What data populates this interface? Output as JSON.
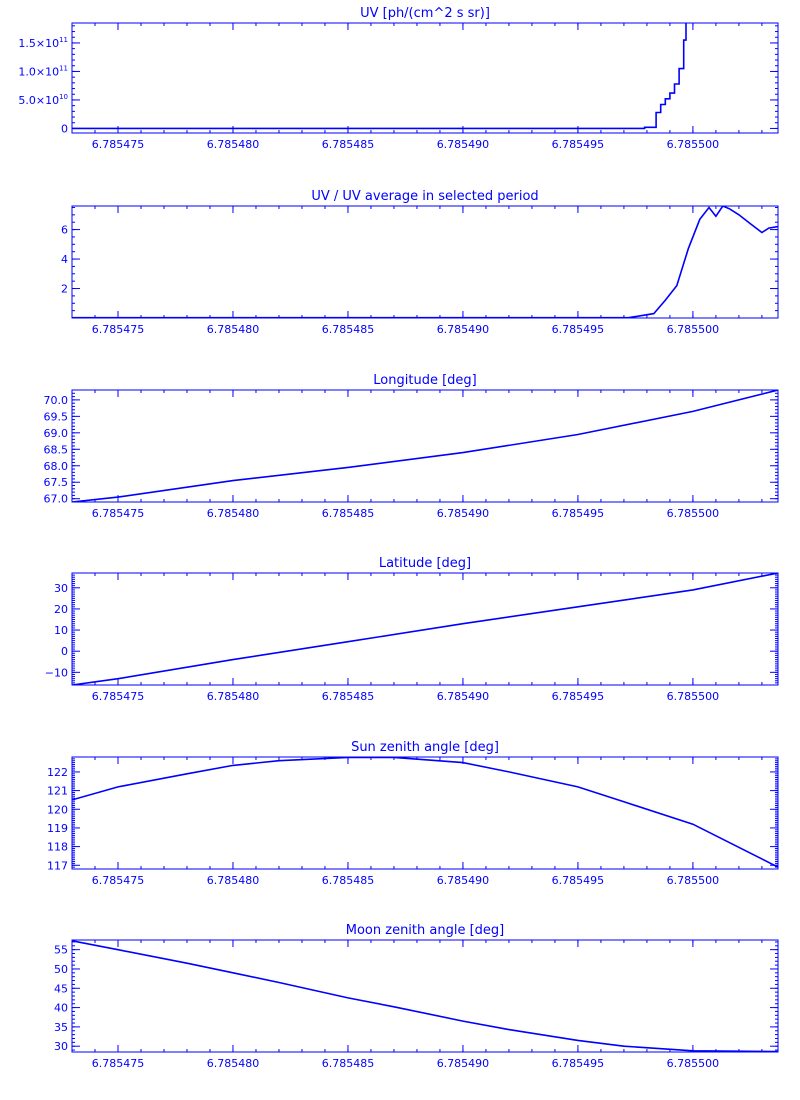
{
  "color": "#0000ff",
  "chart_data": [
    {
      "type": "line",
      "title": "UV [ph/(cm^2 s sr)]",
      "xlim": [
        6.785473,
        6.7855037
      ],
      "ylim": [
        -8000000000,
        185000000000
      ],
      "xticks": [
        "6.785475",
        "6.785480",
        "6.785485",
        "6.785490",
        "6.785495",
        "6.785500"
      ],
      "xtick_values": [
        6.785475,
        6.78548,
        6.785485,
        6.78549,
        6.785495,
        6.7855
      ],
      "yticks": [
        {
          "value": 150000000000,
          "base": "1.5×10",
          "exp": "11"
        },
        {
          "value": 100000000000,
          "base": "1.0×10",
          "exp": "11"
        },
        {
          "value": 50000000000,
          "base": "5.0×10",
          "exp": "10"
        },
        {
          "value": 0,
          "base": "0",
          "exp": ""
        }
      ],
      "ministep": 10000000000,
      "x": [
        6.785473,
        6.785497,
        6.7854979,
        6.7854982,
        6.7854984,
        6.7854986,
        6.7854988,
        6.785499,
        6.7854992,
        6.7854994,
        6.7854996,
        6.7854997
      ],
      "y": [
        0,
        0,
        2000000000,
        2000000000,
        28000000000,
        42000000000,
        52000000000,
        62000000000,
        78000000000,
        105000000000,
        155000000000,
        185000000000
      ],
      "step": true
    },
    {
      "type": "line",
      "title": "UV / UV average in selected period",
      "xlim": [
        6.785473,
        6.7855037
      ],
      "ylim": [
        0,
        7.6
      ],
      "xticks": [
        "6.785475",
        "6.785480",
        "6.785485",
        "6.785490",
        "6.785495",
        "6.785500"
      ],
      "xtick_values": [
        6.785475,
        6.78548,
        6.785485,
        6.78549,
        6.785495,
        6.7855
      ],
      "yticks": [
        {
          "value": 6,
          "base": "6",
          "exp": ""
        },
        {
          "value": 4,
          "base": "4",
          "exp": ""
        },
        {
          "value": 2,
          "base": "2",
          "exp": ""
        }
      ],
      "ministep": 0.5,
      "x": [
        6.785473,
        6.7854972,
        6.7854983,
        6.7854988,
        6.7854993,
        6.7854998,
        6.7855003,
        6.7855007,
        6.785501,
        6.7855013,
        6.7855016,
        6.785502,
        6.7855025,
        6.785503,
        6.7855033,
        6.7855037
      ],
      "y": [
        0.02,
        0.02,
        0.3,
        1.2,
        2.2,
        4.7,
        6.7,
        7.5,
        6.9,
        7.6,
        7.4,
        7.0,
        6.4,
        5.8,
        6.1,
        6.2
      ]
    },
    {
      "type": "line",
      "title": "Longitude [deg]",
      "xlim": [
        6.785473,
        6.7855037
      ],
      "ylim": [
        66.9,
        70.3
      ],
      "xticks": [
        "6.785475",
        "6.785480",
        "6.785485",
        "6.785490",
        "6.785495",
        "6.785500"
      ],
      "xtick_values": [
        6.785475,
        6.78548,
        6.785485,
        6.78549,
        6.785495,
        6.7855
      ],
      "yticks": [
        {
          "value": 70.0,
          "base": "70.0",
          "exp": ""
        },
        {
          "value": 69.5,
          "base": "69.5",
          "exp": ""
        },
        {
          "value": 69.0,
          "base": "69.0",
          "exp": ""
        },
        {
          "value": 68.5,
          "base": "68.5",
          "exp": ""
        },
        {
          "value": 68.0,
          "base": "68.0",
          "exp": ""
        },
        {
          "value": 67.5,
          "base": "67.5",
          "exp": ""
        },
        {
          "value": 67.0,
          "base": "67.0",
          "exp": ""
        }
      ],
      "ministep": 0.1,
      "x": [
        6.785473,
        6.785475,
        6.78548,
        6.785485,
        6.78549,
        6.785495,
        6.7855,
        6.7855037
      ],
      "y": [
        66.9,
        67.05,
        67.55,
        67.95,
        68.4,
        68.95,
        69.65,
        70.3
      ]
    },
    {
      "type": "line",
      "title": "Latitude [deg]",
      "xlim": [
        6.785473,
        6.7855037
      ],
      "ylim": [
        -16,
        37
      ],
      "xticks": [
        "6.785475",
        "6.785480",
        "6.785485",
        "6.785490",
        "6.785495",
        "6.785500"
      ],
      "xtick_values": [
        6.785475,
        6.78548,
        6.785485,
        6.78549,
        6.785495,
        6.7855
      ],
      "yticks": [
        {
          "value": 30,
          "base": "30",
          "exp": ""
        },
        {
          "value": 20,
          "base": "20",
          "exp": ""
        },
        {
          "value": 10,
          "base": "10",
          "exp": ""
        },
        {
          "value": 0,
          "base": "0",
          "exp": ""
        },
        {
          "value": -10,
          "base": "−10",
          "exp": ""
        }
      ],
      "ministep": 1,
      "x": [
        6.785473,
        6.785475,
        6.78548,
        6.785485,
        6.78549,
        6.785495,
        6.7855,
        6.7855037
      ],
      "y": [
        -16,
        -13,
        -4,
        4.5,
        13,
        21,
        29,
        37
      ]
    },
    {
      "type": "line",
      "title": "Sun zenith angle [deg]",
      "xlim": [
        6.785473,
        6.7855037
      ],
      "ylim": [
        116.8,
        122.8
      ],
      "xticks": [
        "6.785475",
        "6.785480",
        "6.785485",
        "6.785490",
        "6.785495",
        "6.785500"
      ],
      "xtick_values": [
        6.785475,
        6.78548,
        6.785485,
        6.78549,
        6.785495,
        6.7855
      ],
      "yticks": [
        {
          "value": 122,
          "base": "122",
          "exp": ""
        },
        {
          "value": 121,
          "base": "121",
          "exp": ""
        },
        {
          "value": 120,
          "base": "120",
          "exp": ""
        },
        {
          "value": 119,
          "base": "119",
          "exp": ""
        },
        {
          "value": 118,
          "base": "118",
          "exp": ""
        },
        {
          "value": 117,
          "base": "117",
          "exp": ""
        }
      ],
      "ministep": 0.1,
      "x": [
        6.785473,
        6.785475,
        6.785478,
        6.78548,
        6.785482,
        6.785485,
        6.785487,
        6.78549,
        6.785492,
        6.785495,
        6.785497,
        6.7855,
        6.7855037
      ],
      "y": [
        120.5,
        121.2,
        121.9,
        122.35,
        122.6,
        122.78,
        122.78,
        122.5,
        122.0,
        121.2,
        120.4,
        119.2,
        116.9
      ]
    },
    {
      "type": "line",
      "title": "Moon zenith angle [deg]",
      "xlim": [
        6.785473,
        6.7855037
      ],
      "ylim": [
        28.5,
        57.5
      ],
      "xticks": [
        "6.785475",
        "6.785480",
        "6.785485",
        "6.785490",
        "6.785495",
        "6.785500"
      ],
      "xtick_values": [
        6.785475,
        6.78548,
        6.785485,
        6.78549,
        6.785495,
        6.7855
      ],
      "yticks": [
        {
          "value": 55,
          "base": "55",
          "exp": ""
        },
        {
          "value": 50,
          "base": "50",
          "exp": ""
        },
        {
          "value": 45,
          "base": "45",
          "exp": ""
        },
        {
          "value": 40,
          "base": "40",
          "exp": ""
        },
        {
          "value": 35,
          "base": "35",
          "exp": ""
        },
        {
          "value": 30,
          "base": "30",
          "exp": ""
        }
      ],
      "ministep": 1,
      "x": [
        6.785473,
        6.785475,
        6.785478,
        6.78548,
        6.785482,
        6.785485,
        6.785487,
        6.78549,
        6.785492,
        6.785495,
        6.785497,
        6.7855,
        6.7855037
      ],
      "y": [
        57.3,
        55.0,
        51.5,
        49.0,
        46.5,
        42.5,
        40.2,
        36.5,
        34.3,
        31.5,
        30.0,
        28.8,
        28.6
      ]
    }
  ]
}
